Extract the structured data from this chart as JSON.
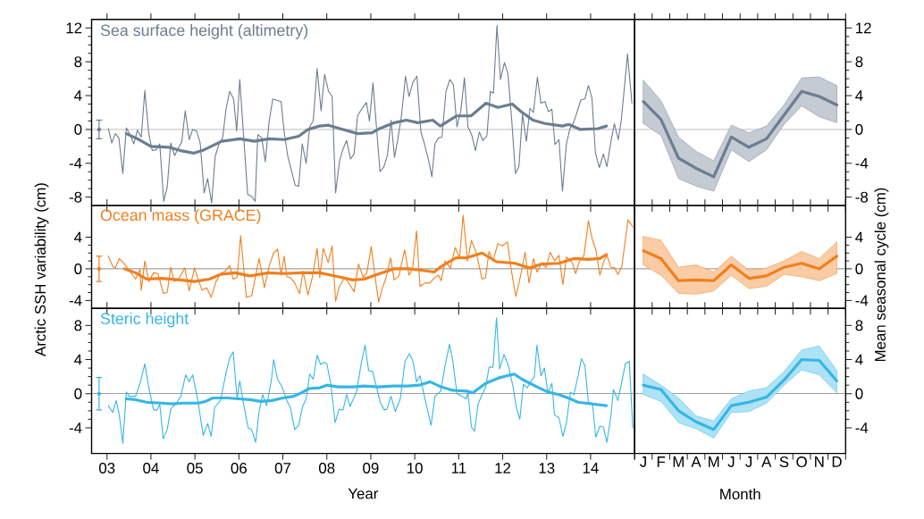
{
  "chart_data": [
    {
      "type": "line",
      "xlim": [
        2.65,
        15
      ],
      "ylim": [
        -9,
        13
      ],
      "tick_labels": "y",
      "xticks": [
        {
          "value": 3,
          "label": null
        },
        {
          "value": 4,
          "label": null
        },
        {
          "value": 5,
          "label": null
        },
        {
          "value": 6,
          "label": null
        },
        {
          "value": 7,
          "label": null
        },
        {
          "value": 8,
          "label": null
        },
        {
          "value": 9,
          "label": null
        },
        {
          "value": 10,
          "label": null
        },
        {
          "value": 11,
          "label": null
        },
        {
          "value": 12,
          "label": null
        },
        {
          "value": 13,
          "label": null
        },
        {
          "value": 14,
          "label": null
        },
        {
          "value": 15,
          "label": null
        }
      ],
      "yticks": [
        -8,
        -4,
        0,
        4,
        8,
        12
      ],
      "ref_lines": [
        {
          "axis": "y",
          "value": 0
        }
      ],
      "series": [
        {
          "name": "Sea surface height (altimetry)",
          "color": "#6b7d90",
          "x": [
            3.03,
            3.11,
            3.19,
            3.27,
            3.36,
            3.44,
            3.53,
            3.61,
            3.69,
            3.78,
            3.86,
            3.95,
            4.03,
            4.12,
            4.2,
            4.29,
            4.37,
            4.45,
            4.54,
            4.62,
            4.7,
            4.78,
            4.87,
            4.95,
            5.04,
            5.12,
            5.21,
            5.29,
            5.38,
            5.46,
            5.55,
            5.63,
            5.71,
            5.79,
            5.88,
            5.95,
            6.02,
            6.11,
            6.2,
            6.29,
            6.37,
            6.43,
            6.52,
            6.6,
            6.69,
            6.77,
            6.96,
            7.03,
            7.11,
            7.28,
            7.36,
            7.44,
            7.53,
            7.61,
            7.69,
            7.78,
            7.87,
            7.95,
            8.04,
            8.12,
            8.2,
            8.29,
            8.37,
            8.45,
            8.54,
            8.62,
            8.7,
            8.79,
            8.9,
            8.97,
            9.05,
            9.21,
            9.3,
            9.38,
            9.46,
            9.54,
            9.62,
            9.7,
            9.79,
            9.87,
            9.96,
            10.05,
            10.14,
            10.22,
            10.31,
            10.39,
            10.46,
            10.54,
            10.62,
            10.71,
            10.8,
            10.88,
            10.96,
            11.05,
            11.13,
            11.21,
            11.3,
            11.38,
            11.47,
            11.55,
            11.64,
            11.72,
            11.79,
            11.87,
            11.95,
            12.04,
            12.12,
            12.21,
            12.29,
            12.37,
            12.45,
            12.54,
            12.62,
            12.7,
            12.79,
            12.87,
            12.96,
            13.04,
            13.12,
            13.19,
            13.28,
            13.36,
            13.45,
            13.53,
            13.62,
            13.7,
            13.78,
            13.87,
            13.95,
            14.03,
            14.11,
            14.2,
            14.29,
            14.37,
            14.45,
            14.54,
            14.63,
            14.7,
            14.84,
            14.94
          ],
          "values": [
            0.1,
            -1.6,
            -0.5,
            -1.0,
            -5.2,
            0.2,
            -0.7,
            -1.7,
            -0.1,
            -0.9,
            4.6,
            -0.5,
            -2.5,
            -2.4,
            -1.7,
            -8.5,
            -6.8,
            -1.6,
            -3.1,
            -2.2,
            -1.5,
            2.2,
            -1.2,
            0.0,
            -0.2,
            -1.6,
            -7.5,
            -5.8,
            -8.7,
            -3.2,
            -1.7,
            -1.0,
            2.5,
            4.5,
            3.6,
            -0.2,
            5.9,
            -1.0,
            -7.7,
            -7.9,
            -8.5,
            -0.6,
            -1.0,
            -3.8,
            1.0,
            3.6,
            3.3,
            -0.3,
            -3.1,
            -6.6,
            -6.7,
            -1.7,
            -4.0,
            0.3,
            1.0,
            7.2,
            2.2,
            6.5,
            4.5,
            3.9,
            -7.5,
            -3.7,
            -2.3,
            -1.3,
            -3.5,
            -2.9,
            1.6,
            2.4,
            3.2,
            1.0,
            5.5,
            -5.0,
            -4.4,
            -3.0,
            1.1,
            -3.3,
            -1.0,
            1.7,
            6.3,
            3.9,
            5.6,
            6.3,
            -0.3,
            -1.7,
            -3.5,
            -5.6,
            -1.7,
            -1.0,
            -0.9,
            4.5,
            5.9,
            5.3,
            0.3,
            2.3,
            6.1,
            0.3,
            -0.7,
            -2.5,
            -0.3,
            -1.3,
            -0.8,
            4.5,
            4.3,
            12.3,
            5.9,
            7.9,
            6.6,
            0.8,
            -5.2,
            -4.4,
            1.8,
            -1.4,
            2.5,
            2.0,
            6.2,
            3.1,
            3.3,
            2.1,
            2.4,
            -1.8,
            -1.2,
            -7.3,
            -1.7,
            0.1,
            0.9,
            2.2,
            3.5,
            3.6,
            5.2,
            3.7,
            -2.8,
            -4.5,
            -2.9,
            -4.4,
            -1.8,
            0.7,
            -1.2,
            1.2,
            8.9,
            3.1
          ]
        },
        {
          "color": "#6b7d90",
          "x": [
            3.44,
            3.73,
            4.0,
            4.4,
            4.67,
            4.97,
            5.21,
            5.61,
            6.02,
            6.35,
            6.69,
            7.03,
            7.36,
            7.57,
            7.83,
            8.04,
            8.37,
            8.71,
            9.03,
            9.2,
            9.54,
            9.81,
            10.07,
            10.41,
            10.58,
            10.95,
            11.28,
            11.62,
            11.89,
            12.22,
            12.42,
            12.69,
            12.96,
            13.36,
            13.5,
            13.77,
            14.17,
            14.36
          ],
          "values": [
            -0.5,
            -1.2,
            -2.0,
            -2.1,
            -2.5,
            -2.8,
            -2.4,
            -1.4,
            -1.1,
            -1.4,
            -1.1,
            -1.2,
            -0.8,
            0.0,
            0.4,
            0.5,
            0.0,
            -0.5,
            -0.4,
            0.1,
            0.8,
            1.1,
            0.8,
            1.1,
            0.4,
            1.6,
            1.6,
            3.1,
            2.6,
            3.0,
            2.1,
            1.1,
            0.7,
            0.4,
            0.6,
            0.0,
            0.1,
            0.4
          ]
        },
        {
          "type": "scatter",
          "color": "#6b7d90",
          "x": [
            2.82
          ],
          "values": [
            0
          ],
          "errors": [
            1.1
          ]
        }
      ]
    },
    {
      "type": "line",
      "categories": [
        null,
        null,
        null,
        null,
        null,
        null,
        null,
        null,
        null,
        null,
        null,
        null
      ],
      "ylim": [
        -9,
        13
      ],
      "yticks": [
        -8,
        -4,
        0,
        4,
        8,
        12
      ],
      "ref_lines": [
        {
          "axis": "y",
          "value": 0
        }
      ],
      "series": [
        {
          "color": "#6b7d90",
          "values": [
            3.3,
            1.2,
            -3.4,
            -4.6,
            -5.6,
            -0.9,
            -2.1,
            -1.1,
            1.7,
            4.5,
            3.9,
            2.9
          ],
          "upper": [
            5.8,
            3.4,
            -0.9,
            -2.6,
            -3.7,
            0.5,
            -0.4,
            0.4,
            2.9,
            6.1,
            6.2,
            5.2
          ],
          "lower": [
            0.7,
            -0.7,
            -5.8,
            -6.7,
            -7.3,
            -2.4,
            -3.8,
            -2.4,
            0.6,
            2.8,
            1.5,
            0.8
          ]
        }
      ]
    },
    {
      "type": "line",
      "xlim": [
        2.65,
        15
      ],
      "ylim": [
        -5,
        8
      ],
      "tick_labels": "y",
      "ylabel": "Arctic SSH variability (cm)",
      "xticks": [
        {
          "value": 3,
          "label": null
        },
        {
          "value": 4,
          "label": null
        },
        {
          "value": 5,
          "label": null
        },
        {
          "value": 6,
          "label": null
        },
        {
          "value": 7,
          "label": null
        },
        {
          "value": 8,
          "label": null
        },
        {
          "value": 9,
          "label": null
        },
        {
          "value": 10,
          "label": null
        },
        {
          "value": 11,
          "label": null
        },
        {
          "value": 12,
          "label": null
        },
        {
          "value": 13,
          "label": null
        },
        {
          "value": 14,
          "label": null
        },
        {
          "value": 15,
          "label": null
        }
      ],
      "yticks": [
        -4,
        0,
        4
      ],
      "ref_lines": [
        {
          "axis": "y",
          "value": 0
        }
      ],
      "series": [
        {
          "name": "Ocean mass (GRACE)",
          "color": "#f07f1e",
          "x": [
            3.03,
            3.13,
            3.19,
            3.28,
            3.4,
            3.53,
            3.65,
            3.75,
            3.78,
            3.86,
            3.95,
            4.06,
            4.16,
            4.28,
            4.37,
            4.45,
            4.53,
            4.64,
            4.77,
            4.87,
            4.99,
            5.16,
            5.27,
            5.37,
            5.48,
            5.58,
            5.69,
            5.79,
            5.87,
            5.96,
            6.04,
            6.17,
            6.29,
            6.46,
            6.58,
            6.69,
            6.79,
            6.88,
            6.96,
            7.03,
            7.09,
            7.17,
            7.27,
            7.38,
            7.46,
            7.57,
            7.67,
            7.78,
            7.84,
            7.92,
            8.03,
            8.12,
            8.2,
            8.28,
            8.41,
            8.51,
            8.62,
            8.72,
            8.83,
            8.91,
            9.01,
            9.1,
            9.18,
            9.26,
            9.35,
            9.45,
            9.53,
            9.64,
            9.77,
            9.87,
            9.95,
            10.04,
            10.12,
            10.23,
            10.34,
            10.44,
            10.54,
            10.6,
            10.69,
            10.81,
            10.92,
            11.02,
            11.1,
            11.2,
            11.29,
            11.4,
            11.53,
            11.61,
            11.69,
            11.78,
            11.89,
            11.99,
            12.11,
            12.2,
            12.3,
            12.41,
            12.51,
            12.6,
            12.7,
            12.78,
            12.88,
            12.99,
            13.08,
            13.18,
            13.28,
            13.37,
            13.45,
            13.58,
            13.66,
            13.75,
            13.85,
            13.95,
            14.04,
            14.12,
            14.21,
            14.29,
            14.37,
            14.47,
            14.54,
            14.62,
            14.71,
            14.85,
            14.96
          ],
          "values": [
            1.6,
            0.3,
            0.1,
            1.3,
            0.6,
            -0.4,
            -1.3,
            -0.1,
            -2.7,
            1.0,
            -1.6,
            -0.5,
            -0.6,
            -3.1,
            -3.0,
            0.2,
            -1.6,
            -1.2,
            0.1,
            -2.8,
            0.1,
            -2.7,
            -2.4,
            -3.6,
            -1.6,
            -0.6,
            -0.3,
            0.4,
            -1.3,
            -1.1,
            4.2,
            -3.6,
            -3.4,
            1.3,
            -2.4,
            0.4,
            2.0,
            2.5,
            -0.8,
            1.6,
            -1.0,
            -1.1,
            -1.8,
            -3.1,
            -0.3,
            -3.3,
            -1.1,
            2.6,
            -1.1,
            2.6,
            0.8,
            2.9,
            -4.1,
            -2.3,
            -1.1,
            -1.9,
            -2.9,
            0.6,
            -1.1,
            -0.5,
            2.8,
            -1.1,
            -4.2,
            -2.5,
            -1.1,
            1.4,
            -1.4,
            -0.9,
            2.4,
            -0.8,
            0.0,
            4.8,
            -2.2,
            -1.8,
            -1.8,
            -1.2,
            -0.8,
            -1.5,
            1.0,
            0.1,
            2.7,
            1.4,
            6.8,
            1.0,
            3.6,
            2.0,
            -1.3,
            -1.1,
            2.2,
            1.0,
            3.2,
            2.9,
            3.4,
            -0.3,
            -3.5,
            -0.8,
            2.1,
            -1.8,
            1.3,
            -0.4,
            0.6,
            0.2,
            2.1,
            1.0,
            1.7,
            -2.0,
            1.5,
            0.8,
            -0.6,
            1.0,
            1.7,
            6.1,
            3.7,
            2.4,
            -0.8,
            0.8,
            1.7,
            0.1,
            0.2,
            -0.7,
            0.3,
            6.2,
            5.3
          ]
        },
        {
          "color": "#f07f1e",
          "x": [
            3.4,
            3.65,
            3.9,
            4.24,
            4.66,
            4.99,
            5.33,
            5.58,
            5.91,
            6.25,
            6.67,
            7.0,
            7.42,
            7.84,
            8.26,
            8.59,
            8.85,
            9.1,
            9.52,
            9.85,
            10.19,
            10.44,
            10.6,
            10.94,
            11.19,
            11.53,
            11.86,
            12.28,
            12.61,
            12.87,
            13.28,
            13.62,
            13.95,
            14.21,
            14.36
          ],
          "values": [
            0.0,
            -0.5,
            -1.3,
            -1.2,
            -1.4,
            -1.6,
            -1.3,
            -0.7,
            -0.5,
            -0.9,
            -0.5,
            -0.6,
            -0.5,
            -0.5,
            -1.0,
            -1.4,
            -1.3,
            -0.8,
            0.0,
            0.0,
            -0.2,
            -0.4,
            0.3,
            1.4,
            1.4,
            2.0,
            0.9,
            0.7,
            0.1,
            0.6,
            0.7,
            1.3,
            1.2,
            1.3,
            1.8
          ]
        },
        {
          "type": "scatter",
          "color": "#f07f1e",
          "x": [
            2.82
          ],
          "values": [
            0
          ],
          "errors": [
            1.6
          ]
        }
      ]
    },
    {
      "type": "line",
      "categories": [
        null,
        null,
        null,
        null,
        null,
        null,
        null,
        null,
        null,
        null,
        null,
        null
      ],
      "ylim": [
        -5,
        8
      ],
      "ylabel": "Mean seasonal cycle (cm)",
      "yticks": [
        -4,
        0,
        4
      ],
      "ref_lines": [
        {
          "axis": "y",
          "value": 0
        }
      ],
      "series": [
        {
          "color": "#f07f1e",
          "values": [
            2.3,
            1.3,
            -1.5,
            -1.4,
            -1.5,
            0.5,
            -1.2,
            -0.9,
            0.2,
            0.7,
            0.0,
            1.6
          ],
          "upper": [
            4.1,
            3.6,
            0.2,
            0.5,
            -0.4,
            1.6,
            -0.2,
            0.1,
            1.0,
            2.2,
            1.3,
            3.4
          ],
          "lower": [
            0.5,
            -0.8,
            -3.1,
            -3.2,
            -2.8,
            -0.8,
            -2.5,
            -2.2,
            -0.7,
            -1.0,
            -1.5,
            -0.6
          ]
        }
      ]
    },
    {
      "type": "line",
      "xlim": [
        2.65,
        15
      ],
      "ylim": [
        -7,
        10
      ],
      "xlabel": "Year",
      "xticks": [
        {
          "value": 3,
          "label": "03"
        },
        {
          "value": 4,
          "label": "04"
        },
        {
          "value": 5,
          "label": "05"
        },
        {
          "value": 6,
          "label": "06"
        },
        {
          "value": 7,
          "label": "07"
        },
        {
          "value": 8,
          "label": "08"
        },
        {
          "value": 9,
          "label": "09"
        },
        {
          "value": 10,
          "label": "10"
        },
        {
          "value": 11,
          "label": "11"
        },
        {
          "value": 12,
          "label": "12"
        },
        {
          "value": 13,
          "label": "13"
        },
        {
          "value": 14,
          "label": "14"
        },
        {
          "value": 15,
          "label": null
        }
      ],
      "yticks": [
        -4,
        0,
        4,
        8
      ],
      "ref_lines": [
        {
          "axis": "y",
          "value": 0
        }
      ],
      "series": [
        {
          "name": "Steric height",
          "color": "#35b6e6",
          "x": [
            3.03,
            3.13,
            3.21,
            3.28,
            3.36,
            3.44,
            3.51,
            3.65,
            3.75,
            3.86,
            3.96,
            4.06,
            4.14,
            4.2,
            4.28,
            4.37,
            4.45,
            4.56,
            4.68,
            4.79,
            4.87,
            4.95,
            5.06,
            5.19,
            5.29,
            5.37,
            5.45,
            5.58,
            5.71,
            5.79,
            5.87,
            5.96,
            6.02,
            6.1,
            6.21,
            6.29,
            6.38,
            6.46,
            6.54,
            6.63,
            6.74,
            6.79,
            6.88,
            6.99,
            7.09,
            7.17,
            7.27,
            7.36,
            7.45,
            7.53,
            7.61,
            7.69,
            7.78,
            7.86,
            7.94,
            8.0,
            8.09,
            8.19,
            8.28,
            8.37,
            8.45,
            8.53,
            8.68,
            8.78,
            8.87,
            8.95,
            9.04,
            9.14,
            9.22,
            9.31,
            9.37,
            9.46,
            9.56,
            9.67,
            9.78,
            9.88,
            9.96,
            10.04,
            10.12,
            10.21,
            10.37,
            10.46,
            10.59,
            10.69,
            10.79,
            10.87,
            10.96,
            11.07,
            11.17,
            11.21,
            11.29,
            11.36,
            11.44,
            11.55,
            11.61,
            11.69,
            11.78,
            11.86,
            11.93,
            12.03,
            12.13,
            12.24,
            12.31,
            12.39,
            12.47,
            12.56,
            12.66,
            12.72,
            12.78,
            12.87,
            12.95,
            13.03,
            13.12,
            13.18,
            13.28,
            13.37,
            13.45,
            13.54,
            13.62,
            13.72,
            13.79,
            13.87,
            13.95,
            14.04,
            14.12,
            14.21,
            14.29,
            14.37,
            14.46,
            14.52,
            14.62,
            14.71,
            14.79,
            14.88,
            14.96
          ],
          "values": [
            -1.4,
            -2.2,
            -0.8,
            -2.5,
            -5.8,
            0.2,
            -0.3,
            -0.3,
            1.2,
            3.5,
            0.5,
            -1.9,
            -1.9,
            -1.2,
            -5.3,
            -4.2,
            -1.8,
            -1.2,
            -0.3,
            2.2,
            1.4,
            2.2,
            -0.6,
            -4.9,
            -3.5,
            -5.0,
            -1.6,
            -0.8,
            2.5,
            4.2,
            4.9,
            -0.6,
            1.5,
            -1.0,
            -4.0,
            -4.2,
            -5.7,
            -2.1,
            -0.1,
            -1.4,
            1.6,
            4.0,
            1.7,
            0.7,
            -0.8,
            -1.6,
            -4.2,
            -3.7,
            -1.5,
            -0.6,
            2.3,
            1.7,
            4.5,
            3.4,
            3.7,
            3.5,
            1.2,
            -3.4,
            -1.8,
            -1.9,
            -0.1,
            -1.5,
            0.3,
            3.5,
            5.7,
            2.7,
            2.6,
            0.6,
            -1.1,
            -1.9,
            -1.8,
            -0.3,
            -2.1,
            -0.6,
            3.8,
            4.7,
            3.8,
            1.4,
            2.1,
            -0.1,
            -3.7,
            -0.3,
            0.3,
            3.3,
            5.8,
            3.7,
            0.0,
            -0.3,
            -0.6,
            0.1,
            -3.9,
            -4.4,
            -1.2,
            0.1,
            0.7,
            3.1,
            3.1,
            8.9,
            2.9,
            4.6,
            3.3,
            0.7,
            -1.6,
            -3.0,
            1.1,
            0.7,
            1.6,
            2.0,
            5.7,
            2.1,
            3.0,
            0.1,
            1.2,
            -2.5,
            -2.8,
            -5.0,
            -3.4,
            0.2,
            -0.1,
            2.2,
            4.1,
            3.3,
            -1.0,
            -1.1,
            -5.1,
            -3.8,
            -3.9,
            -5.7,
            -2.7,
            0.5,
            -0.8,
            1.4,
            3.5,
            3.8,
            -4.0
          ]
        },
        {
          "color": "#35b6e6",
          "x": [
            3.44,
            3.65,
            3.9,
            4.24,
            4.49,
            4.74,
            5.08,
            5.24,
            5.41,
            5.75,
            6.0,
            6.25,
            6.5,
            6.75,
            7.0,
            7.25,
            7.42,
            7.59,
            7.84,
            8.0,
            8.26,
            8.59,
            8.85,
            9.18,
            9.52,
            9.85,
            10.1,
            10.35,
            10.6,
            10.86,
            11.19,
            11.32,
            11.61,
            11.94,
            12.26,
            12.44,
            12.78,
            13.03,
            13.28,
            13.54,
            13.71,
            14.04,
            14.36
          ],
          "values": [
            -0.6,
            -0.7,
            -1.0,
            -1.1,
            -1.2,
            -1.1,
            -1.1,
            -0.9,
            -0.5,
            -0.5,
            -0.6,
            -0.7,
            -0.9,
            -0.8,
            -0.5,
            -0.3,
            0.1,
            0.6,
            0.7,
            1.0,
            0.8,
            0.8,
            0.9,
            0.8,
            0.9,
            0.9,
            1.0,
            1.4,
            0.8,
            0.4,
            0.3,
            0.1,
            1.2,
            1.9,
            2.3,
            1.7,
            0.8,
            0.2,
            -0.1,
            -0.6,
            -1.0,
            -1.2,
            -1.4
          ]
        },
        {
          "type": "scatter",
          "color": "#35b6e6",
          "x": [
            2.82
          ],
          "values": [
            0
          ],
          "errors": [
            1.9
          ]
        }
      ]
    },
    {
      "type": "line",
      "categories": [
        "J",
        "F",
        "M",
        "A",
        "M",
        "J",
        "J",
        "A",
        "S",
        "O",
        "N",
        "D"
      ],
      "ylim": [
        -7,
        10
      ],
      "xlabel": "Month",
      "yticks": [
        -4,
        0,
        4,
        8
      ],
      "ref_lines": [
        {
          "axis": "y",
          "value": 0
        }
      ],
      "series": [
        {
          "color": "#35b6e6",
          "values": [
            1.0,
            0.5,
            -2.0,
            -3.3,
            -4.2,
            -1.4,
            -1.0,
            -0.4,
            1.6,
            4.0,
            3.9,
            1.5
          ],
          "upper": [
            2.3,
            1.0,
            -0.5,
            -2.6,
            -3.2,
            -0.6,
            0.3,
            0.7,
            2.6,
            5.1,
            5.6,
            2.7
          ],
          "lower": [
            -0.1,
            -0.9,
            -3.4,
            -4.1,
            -5.2,
            -2.2,
            -2.1,
            -1.1,
            1.0,
            2.8,
            2.2,
            0.1
          ]
        }
      ]
    }
  ]
}
